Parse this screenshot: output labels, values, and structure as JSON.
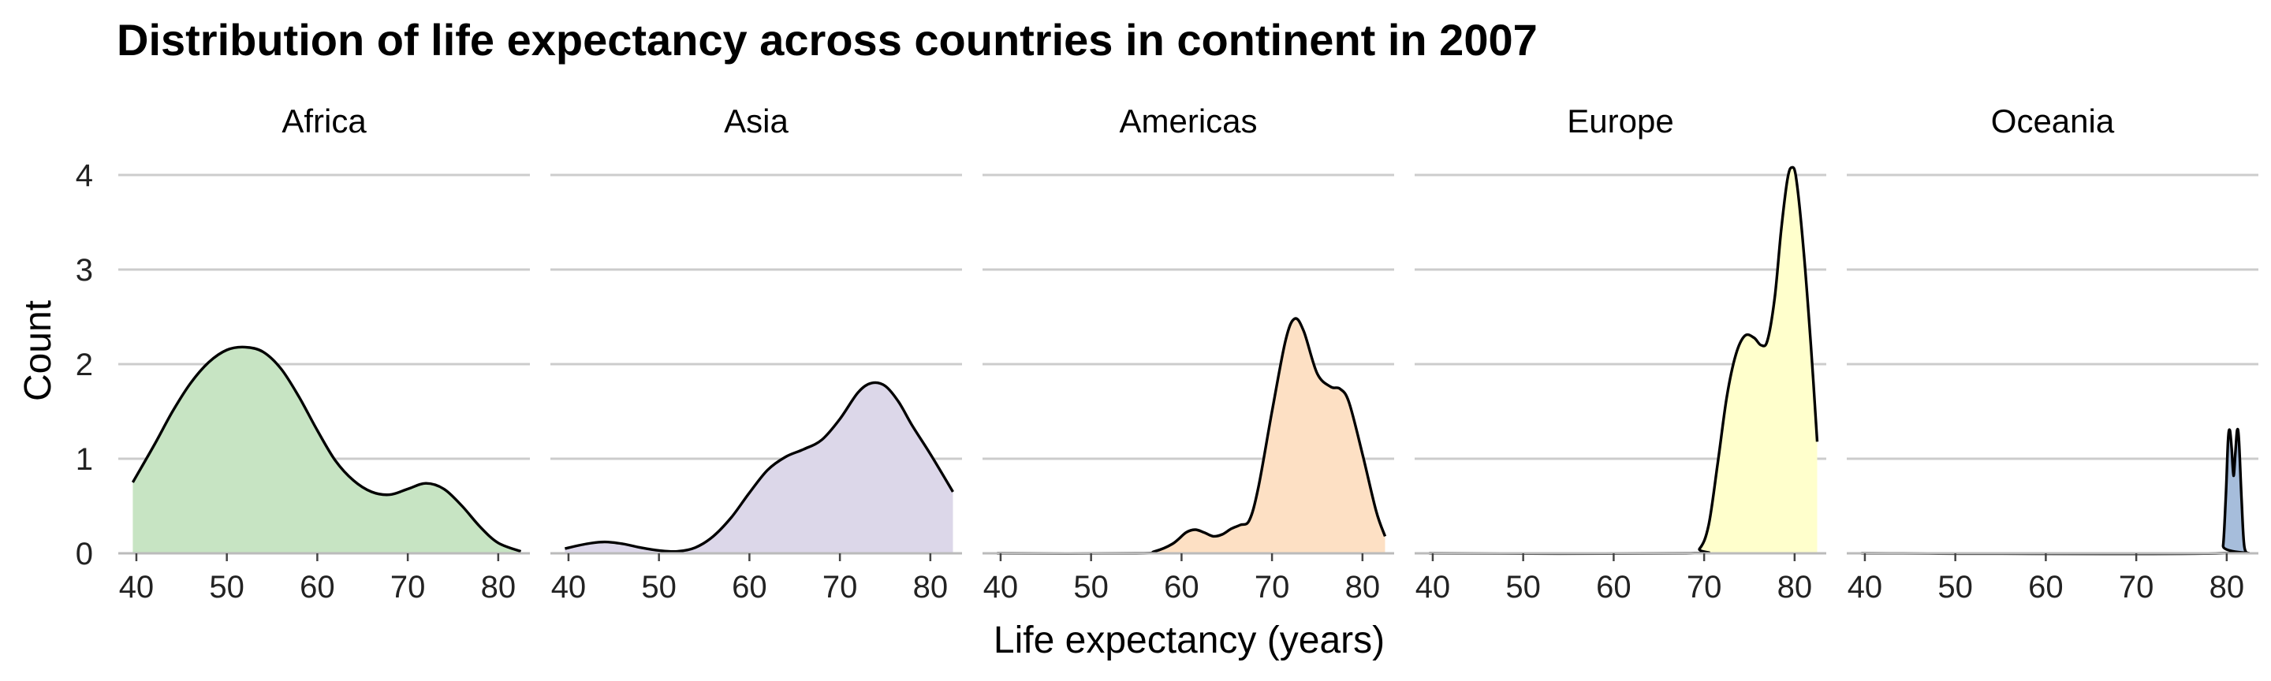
{
  "chart_data": {
    "type": "area",
    "title": "Distribution of life expectancy across countries in continent in 2007",
    "xlabel": "Life expectancy (years)",
    "ylabel": "Count",
    "xlim": [
      38,
      83.5
    ],
    "ylim": [
      0,
      4.3
    ],
    "x_ticks": [
      40,
      50,
      60,
      70,
      80
    ],
    "y_ticks": [
      0,
      1,
      2,
      3,
      4
    ],
    "grid": "horizontal",
    "panels": [
      {
        "name": "Africa",
        "color": "#c7e4c3",
        "points": [
          [
            39.6,
            0.75
          ],
          [
            42,
            1.15
          ],
          [
            44,
            1.5
          ],
          [
            46,
            1.8
          ],
          [
            48,
            2.02
          ],
          [
            50,
            2.15
          ],
          [
            52,
            2.18
          ],
          [
            54,
            2.13
          ],
          [
            56,
            1.95
          ],
          [
            58,
            1.65
          ],
          [
            60,
            1.3
          ],
          [
            62,
            0.98
          ],
          [
            64,
            0.77
          ],
          [
            66,
            0.65
          ],
          [
            68,
            0.62
          ],
          [
            70,
            0.68
          ],
          [
            72,
            0.74
          ],
          [
            74,
            0.68
          ],
          [
            76,
            0.5
          ],
          [
            78,
            0.28
          ],
          [
            80,
            0.11
          ],
          [
            82.5,
            0.02
          ]
        ]
      },
      {
        "name": "Asia",
        "color": "#dcd7e9",
        "points": [
          [
            39.6,
            0.05
          ],
          [
            42,
            0.1
          ],
          [
            44,
            0.12
          ],
          [
            46,
            0.1
          ],
          [
            48,
            0.06
          ],
          [
            50,
            0.03
          ],
          [
            52,
            0.02
          ],
          [
            54,
            0.06
          ],
          [
            56,
            0.18
          ],
          [
            58,
            0.38
          ],
          [
            60,
            0.64
          ],
          [
            62,
            0.88
          ],
          [
            64,
            1.02
          ],
          [
            66,
            1.1
          ],
          [
            68,
            1.2
          ],
          [
            70,
            1.42
          ],
          [
            72,
            1.7
          ],
          [
            73.5,
            1.8
          ],
          [
            75,
            1.77
          ],
          [
            76.5,
            1.6
          ],
          [
            78,
            1.35
          ],
          [
            80,
            1.05
          ],
          [
            82.5,
            0.65
          ]
        ]
      },
      {
        "name": "Americas",
        "color": "#fde0c4",
        "points": [
          [
            39.6,
            0
          ],
          [
            55,
            0
          ],
          [
            57,
            0.02
          ],
          [
            59,
            0.1
          ],
          [
            60.5,
            0.22
          ],
          [
            61.5,
            0.25
          ],
          [
            62.5,
            0.22
          ],
          [
            63.5,
            0.18
          ],
          [
            64.5,
            0.2
          ],
          [
            65.5,
            0.26
          ],
          [
            66.5,
            0.3
          ],
          [
            67.5,
            0.35
          ],
          [
            68.5,
            0.7
          ],
          [
            70,
            1.5
          ],
          [
            71.5,
            2.25
          ],
          [
            72.5,
            2.48
          ],
          [
            73.5,
            2.35
          ],
          [
            75,
            1.9
          ],
          [
            76.5,
            1.76
          ],
          [
            77.5,
            1.74
          ],
          [
            78.5,
            1.6
          ],
          [
            80,
            1.05
          ],
          [
            81.5,
            0.45
          ],
          [
            82.5,
            0.18
          ]
        ]
      },
      {
        "name": "Europe",
        "color": "#ffffcc",
        "points": [
          [
            39.6,
            0
          ],
          [
            68,
            0
          ],
          [
            69.5,
            0.05
          ],
          [
            70.5,
            0.3
          ],
          [
            71.5,
            0.95
          ],
          [
            72.5,
            1.65
          ],
          [
            73.5,
            2.1
          ],
          [
            74.5,
            2.3
          ],
          [
            75.5,
            2.28
          ],
          [
            76.3,
            2.2
          ],
          [
            77,
            2.25
          ],
          [
            77.8,
            2.7
          ],
          [
            78.5,
            3.4
          ],
          [
            79.2,
            3.95
          ],
          [
            79.7,
            4.08
          ],
          [
            80.2,
            3.95
          ],
          [
            81,
            3.2
          ],
          [
            81.8,
            2.2
          ],
          [
            82.5,
            1.18
          ]
        ]
      },
      {
        "name": "Oceania",
        "color": "#a6bddb",
        "points": [
          [
            39.6,
            0
          ],
          [
            79.2,
            0
          ],
          [
            79.6,
            0.08
          ],
          [
            79.9,
            0.6
          ],
          [
            80.15,
            1.2
          ],
          [
            80.35,
            1.3
          ],
          [
            80.55,
            1.1
          ],
          [
            80.75,
            0.82
          ],
          [
            80.95,
            1.05
          ],
          [
            81.15,
            1.3
          ],
          [
            81.35,
            1.2
          ],
          [
            81.65,
            0.55
          ],
          [
            81.95,
            0.07
          ],
          [
            82.5,
            0
          ]
        ]
      }
    ]
  }
}
